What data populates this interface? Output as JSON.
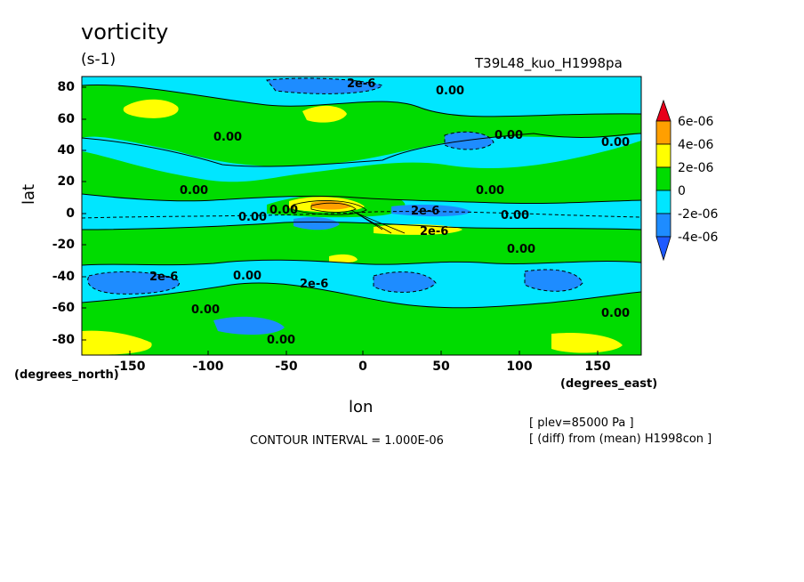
{
  "chart_data": {
    "type": "contour",
    "title": "vorticity",
    "units": "(s-1)",
    "run_name": "T39L48_kuo_H1998pa",
    "xlabel": "lon",
    "ylabel": "lat",
    "xunits": "(degrees_east)",
    "yunits": "(degrees_north)",
    "xlim": [
      -180,
      180
    ],
    "ylim": [
      -90,
      90
    ],
    "xticks": [
      "-150",
      "-100",
      "-50",
      "0",
      "50",
      "100",
      "150"
    ],
    "yticks": [
      "80",
      "60",
      "40",
      "20",
      "0",
      "-20",
      "-40",
      "-60",
      "-80"
    ],
    "contour_interval": "CONTOUR INTERVAL = 1.000E-06",
    "notes": [
      "[ plev=85000 Pa ]",
      "[ (diff) from (mean) H1998con ]"
    ],
    "contour_labels": [
      "2e-6",
      "0.00",
      "0.00",
      "0.00",
      "0.00",
      "0.00",
      "0.00",
      "0.00",
      "2e-6",
      "0.00",
      "2e-6",
      "0.00",
      "0.00",
      "2e-6",
      "0.00",
      "2e-6",
      "0.00",
      "0.00",
      "0.00"
    ],
    "colorbar": {
      "labels": [
        "6e-06",
        "4e-06",
        "2e-06",
        "0",
        "-2e-06",
        "-4e-06"
      ],
      "colors": [
        "#e8001a",
        "#ff9f00",
        "#ffff00",
        "#00dc00",
        "#00e6ff",
        "#1e8cff",
        "#1e5aff"
      ]
    }
  }
}
